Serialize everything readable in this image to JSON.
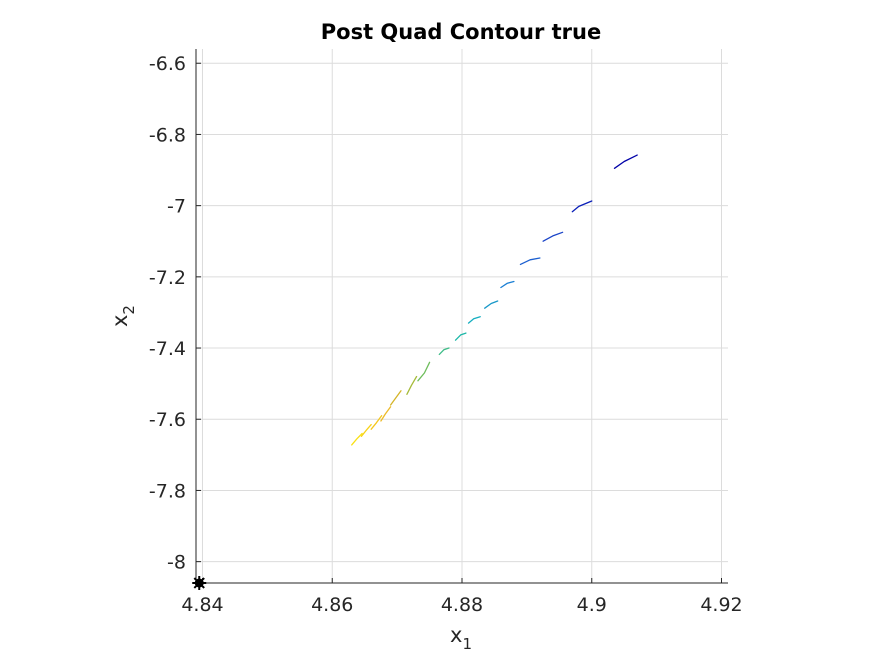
{
  "chart_data": {
    "type": "line",
    "title": "Post Quad Contour true",
    "xlabel": "x",
    "xlabel_sub": "1",
    "ylabel": "x",
    "ylabel_sub": "2",
    "xlim": [
      4.839,
      4.921
    ],
    "ylim": [
      -8.06,
      -6.56
    ],
    "xticks": [
      4.84,
      4.86,
      4.88,
      4.9,
      4.92
    ],
    "xtick_labels": [
      "4.84",
      "4.86",
      "4.88",
      "4.9",
      "4.92"
    ],
    "yticks": [
      -6.6,
      -6.8,
      -7,
      -7.2,
      -7.4,
      -7.6,
      -7.8,
      -8
    ],
    "ytick_labels": [
      "-6.6",
      "-6.8",
      "-7",
      "-7.2",
      "-7.4",
      "-7.6",
      "-7.8",
      "-8"
    ],
    "grid": true,
    "marker_point": {
      "x": 4.8395,
      "y": -8.06,
      "color": "#000000"
    },
    "series": [
      {
        "color": "#0000a8",
        "values": [
          [
            4.9035,
            -6.895
          ],
          [
            4.905,
            -6.876
          ],
          [
            4.907,
            -6.858
          ]
        ]
      },
      {
        "color": "#0a1fb8",
        "values": [
          [
            4.897,
            -7.017
          ],
          [
            4.898,
            -7.002
          ],
          [
            4.9,
            -6.987
          ]
        ]
      },
      {
        "color": "#1a44c8",
        "values": [
          [
            4.8925,
            -7.1
          ],
          [
            4.894,
            -7.085
          ],
          [
            4.8955,
            -7.075
          ]
        ]
      },
      {
        "color": "#1c5fd0",
        "values": [
          [
            4.889,
            -7.165
          ],
          [
            4.8905,
            -7.152
          ],
          [
            4.892,
            -7.147
          ]
        ]
      },
      {
        "color": "#1a7fd4",
        "values": [
          [
            4.886,
            -7.23
          ],
          [
            4.887,
            -7.218
          ],
          [
            4.888,
            -7.213
          ]
        ]
      },
      {
        "color": "#1898c8",
        "values": [
          [
            4.8835,
            -7.288
          ],
          [
            4.8845,
            -7.275
          ],
          [
            4.8855,
            -7.268
          ]
        ]
      },
      {
        "color": "#14aec0",
        "values": [
          [
            4.881,
            -7.33
          ],
          [
            4.8818,
            -7.318
          ],
          [
            4.8828,
            -7.312
          ]
        ]
      },
      {
        "color": "#1cb8a8",
        "values": [
          [
            4.879,
            -7.378
          ],
          [
            4.8798,
            -7.363
          ],
          [
            4.8806,
            -7.358
          ]
        ]
      },
      {
        "color": "#3ebc88",
        "values": [
          [
            4.8765,
            -7.418
          ],
          [
            4.8772,
            -7.405
          ],
          [
            4.878,
            -7.4
          ]
        ]
      },
      {
        "color": "#6ebd5c",
        "values": [
          [
            4.8732,
            -7.492
          ],
          [
            4.8742,
            -7.47
          ],
          [
            4.875,
            -7.44
          ]
        ]
      },
      {
        "color": "#a6bb3a",
        "values": [
          [
            4.8715,
            -7.53
          ],
          [
            4.8722,
            -7.505
          ],
          [
            4.873,
            -7.48
          ]
        ]
      },
      {
        "color": "#d4b428",
        "values": [
          [
            4.869,
            -7.56
          ],
          [
            4.8698,
            -7.54
          ],
          [
            4.8706,
            -7.52
          ]
        ]
      },
      {
        "color": "#ecba28",
        "values": [
          [
            4.8675,
            -7.605
          ],
          [
            4.8682,
            -7.585
          ],
          [
            4.869,
            -7.565
          ]
        ]
      },
      {
        "color": "#f4c61c",
        "values": [
          [
            4.866,
            -7.628
          ],
          [
            4.8668,
            -7.61
          ],
          [
            4.8676,
            -7.59
          ]
        ]
      },
      {
        "color": "#f7d217",
        "values": [
          [
            4.8645,
            -7.648
          ],
          [
            4.8652,
            -7.632
          ],
          [
            4.866,
            -7.615
          ]
        ]
      },
      {
        "color": "#f9e014",
        "values": [
          [
            4.863,
            -7.672
          ],
          [
            4.8638,
            -7.655
          ],
          [
            4.8646,
            -7.64
          ]
        ]
      }
    ]
  }
}
